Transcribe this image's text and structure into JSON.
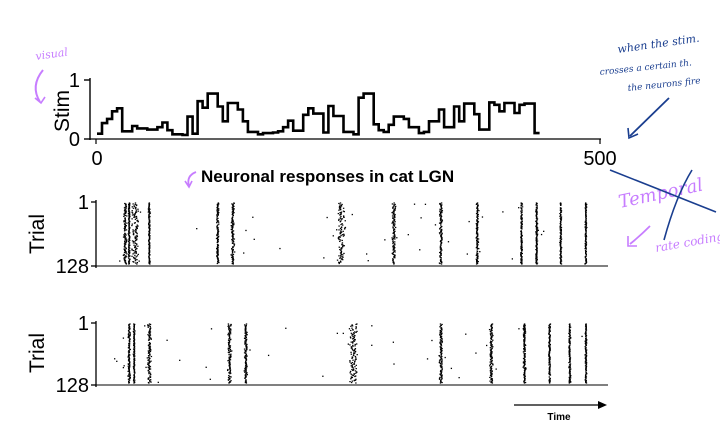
{
  "chart_data": [
    {
      "type": "line",
      "ylabel": "Stim",
      "y_ticks": [
        "0",
        "1"
      ],
      "x_ticks": [
        "0",
        "500"
      ],
      "xlim": [
        0,
        500
      ],
      "ylim": [
        0,
        1
      ],
      "step_values": [
        0.09,
        0.27,
        0.34,
        0.47,
        0.52,
        0.13,
        0.22,
        0.18,
        0.16,
        0.2,
        0.28,
        0.15,
        0.08,
        0.07,
        0.38,
        0.09,
        0.64,
        0.53,
        0.77,
        0.55,
        0.3,
        0.61,
        0.5,
        0.3,
        0.12,
        0.08,
        0.1,
        0.11,
        0.13,
        0.2,
        0.31,
        0.14,
        0.41,
        0.52,
        0.43,
        0.11,
        0.56,
        0.39,
        0.12,
        0.08,
        0.7,
        0.77,
        0.25,
        0.15,
        0.12,
        0.24,
        0.38,
        0.34,
        0.2,
        0.1,
        0.12,
        0.3,
        0.5,
        0.2,
        0.55,
        0.3,
        0.6,
        0.42,
        0.16,
        0.62,
        0.58,
        0.47,
        0.61,
        0.44,
        0.58,
        0.6,
        0.1
      ],
      "step_widths": [
        5,
        5,
        5,
        5,
        5,
        10,
        5,
        10,
        10,
        5,
        5,
        5,
        10,
        5,
        5,
        5,
        5,
        5,
        10,
        5,
        5,
        10,
        5,
        5,
        10,
        5,
        10,
        5,
        5,
        5,
        5,
        10,
        5,
        5,
        10,
        5,
        5,
        10,
        10,
        5,
        5,
        10,
        5,
        5,
        5,
        5,
        10,
        5,
        10,
        5,
        5,
        10,
        5,
        10,
        5,
        5,
        10,
        5,
        10,
        5,
        5,
        5,
        10,
        5,
        5,
        10,
        5
      ],
      "grid": false
    },
    {
      "type": "scatter",
      "title": "Neuronal responses in cat LGN",
      "ylabel": "Trial",
      "y_ticks": [
        "1",
        "128"
      ],
      "trials": 128,
      "bursts": [
        {
          "t": 28,
          "jitter": 1.0
        },
        {
          "t": 32,
          "jitter": 0.5
        },
        {
          "t": 38,
          "jitter": 2.5
        },
        {
          "t": 52,
          "jitter": 0.6
        },
        {
          "t": 120,
          "jitter": 0.8
        },
        {
          "t": 135,
          "jitter": 1.0
        },
        {
          "t": 243,
          "jitter": 2.5
        },
        {
          "t": 295,
          "jitter": 1.2
        },
        {
          "t": 342,
          "jitter": 1.0
        },
        {
          "t": 378,
          "jitter": 0.8
        },
        {
          "t": 422,
          "jitter": 0.6
        },
        {
          "t": 437,
          "jitter": 0.6
        },
        {
          "t": 461,
          "jitter": 0.6
        },
        {
          "t": 486,
          "jitter": 0.6
        }
      ]
    },
    {
      "type": "scatter",
      "ylabel": "Trial",
      "y_ticks": [
        "1",
        "128"
      ],
      "trials": 128,
      "bursts": [
        {
          "t": 32,
          "jitter": 0.8
        },
        {
          "t": 37,
          "jitter": 0.5
        },
        {
          "t": 52,
          "jitter": 1.2
        },
        {
          "t": 132,
          "jitter": 1.2
        },
        {
          "t": 148,
          "jitter": 1.0
        },
        {
          "t": 255,
          "jitter": 2.5
        },
        {
          "t": 342,
          "jitter": 1.0
        },
        {
          "t": 392,
          "jitter": 1.0
        },
        {
          "t": 425,
          "jitter": 0.8
        },
        {
          "t": 450,
          "jitter": 0.6
        },
        {
          "t": 470,
          "jitter": 0.6
        },
        {
          "t": 486,
          "jitter": 0.6
        }
      ]
    }
  ],
  "time_label": "Time",
  "annotations": {
    "visual": "visual",
    "note_line1": "when the stim.",
    "note_line2": "crosses a certain th.",
    "note_line3": "the neurons fire",
    "temporal": "Temporal",
    "rate": "rate coding"
  },
  "colors": {
    "ink": "#000000",
    "purple": "#c77dff",
    "blue": "#1a3e8f"
  }
}
